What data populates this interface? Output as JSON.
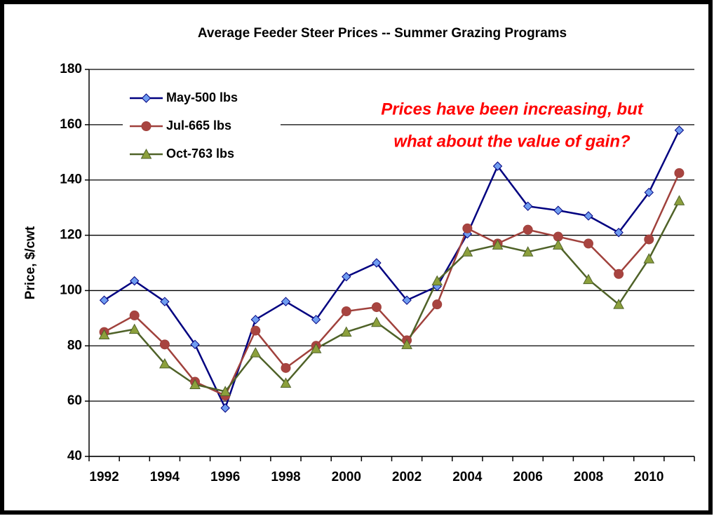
{
  "chart_data": {
    "type": "line",
    "title": "Average Feeder Steer Prices -- Summer Grazing Programs",
    "y_label": "Price, $/cwt",
    "annotations": [
      "Prices have been increasing, but",
      "what about the value of gain?"
    ],
    "annotation_color": "#ff0000",
    "categories": [
      "1992",
      null,
      "1994",
      null,
      "1996",
      null,
      "1998",
      null,
      "2000",
      null,
      "2002",
      null,
      "2004",
      null,
      "2006",
      null,
      "2008",
      null,
      "2010",
      null
    ],
    "ylim": [
      40,
      180
    ],
    "yticks": [
      40,
      60,
      80,
      100,
      120,
      140,
      160,
      180
    ],
    "grid": true,
    "legend": "top-left",
    "series": [
      {
        "name": "May-500 lbs",
        "color": "#000080",
        "marker": "diamond",
        "marker_color": "#6f9cf0",
        "values": [
          96.5,
          103.5,
          96,
          80.5,
          57.5,
          89.5,
          96,
          89.5,
          105,
          110,
          96.5,
          101.5,
          120.5,
          145,
          130.5,
          129,
          127,
          121,
          135.5,
          158
        ]
      },
      {
        "name": "Jul-665 lbs",
        "color": "#a0413c",
        "marker": "circle",
        "marker_color": "#a84440",
        "values": [
          85,
          91,
          80.5,
          67,
          62,
          85.5,
          72,
          80,
          92.5,
          94,
          82,
          95,
          122.5,
          117,
          122,
          119.5,
          117,
          106,
          118.5,
          142.5
        ]
      },
      {
        "name": "Oct-763 lbs",
        "color": "#4f6228",
        "marker": "triangle",
        "marker_color": "#8ca03c",
        "values": [
          84,
          86,
          73.5,
          66,
          63.5,
          77.5,
          66.5,
          79,
          85,
          88.5,
          80.5,
          103.5,
          114,
          116.5,
          114,
          116.5,
          104,
          95,
          111.5,
          132.5
        ]
      }
    ]
  }
}
